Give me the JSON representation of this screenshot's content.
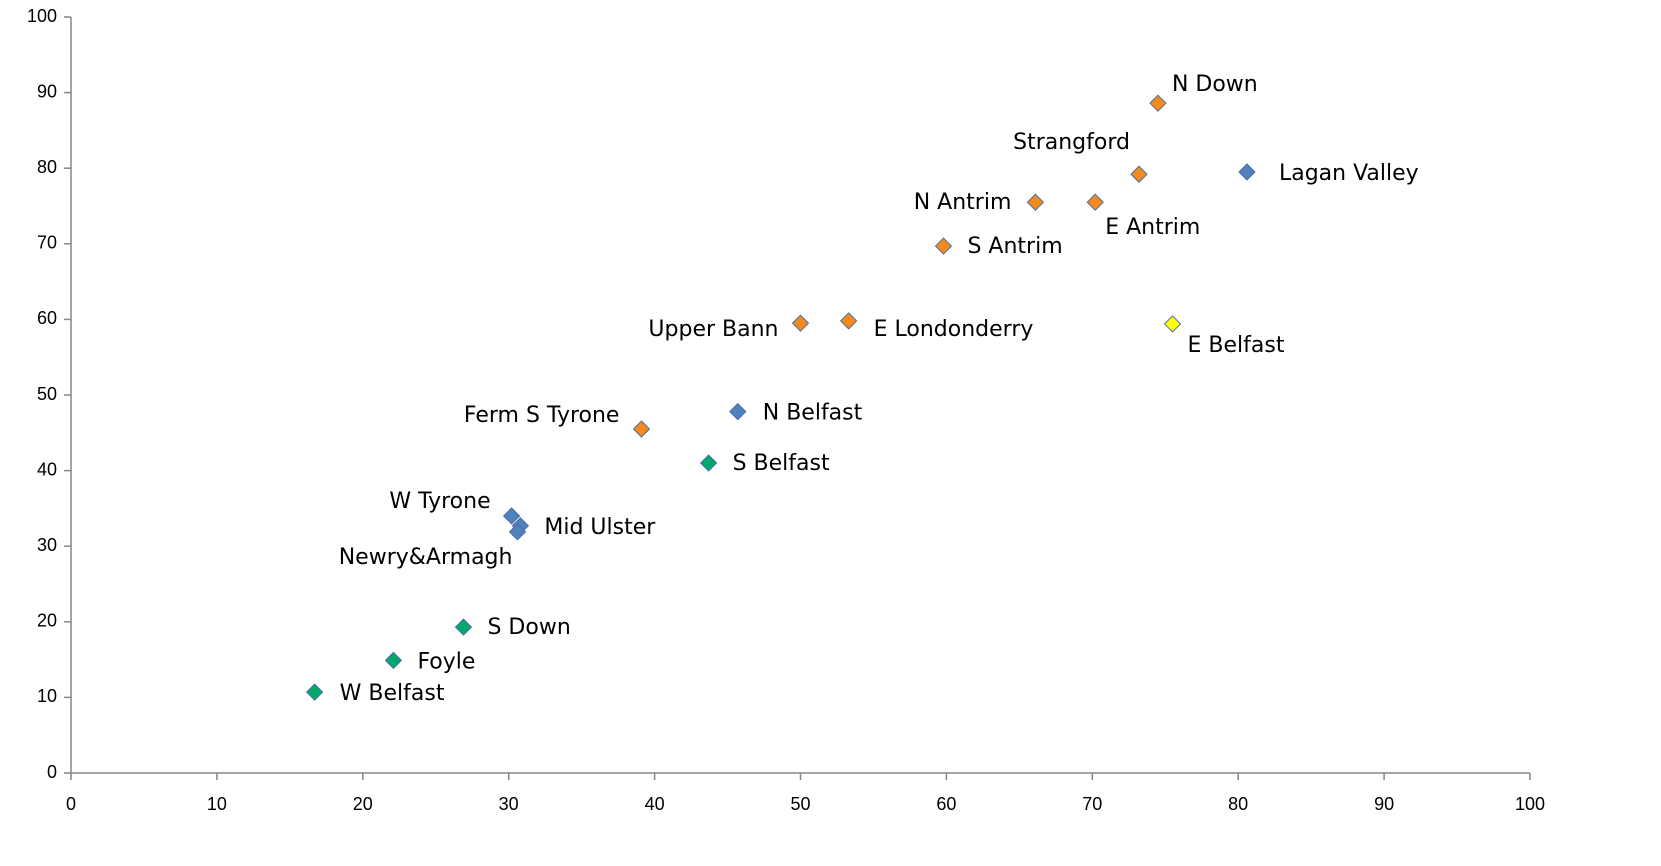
{
  "chart_data": {
    "type": "scatter",
    "labels": [
      "N Down",
      "Strangford",
      "Lagan Valley",
      "N Antrim",
      "E Antrim",
      "S Antrim",
      "Upper Bann",
      "E Londonderry",
      "E Belfast",
      "N Belfast",
      "Ferm S Tyrone",
      "S Belfast",
      "W Tyrone",
      "Mid Ulster",
      "Newry&Armagh",
      "S Down",
      "Foyle",
      "W Belfast"
    ],
    "x": [
      74.5,
      73.2,
      80.6,
      66.1,
      70.2,
      59.8,
      50.0,
      53.3,
      75.5,
      45.7,
      39.1,
      43.7,
      30.2,
      30.8,
      30.6,
      26.9,
      22.1,
      16.7
    ],
    "y": [
      88.6,
      79.2,
      79.5,
      75.5,
      75.5,
      69.7,
      59.5,
      59.8,
      59.4,
      47.8,
      45.5,
      41.0,
      34.0,
      32.7,
      31.9,
      19.3,
      14.9,
      10.7
    ],
    "colors": [
      "#f28a1e",
      "#f28a1e",
      "#4f81bd",
      "#f28a1e",
      "#f28a1e",
      "#f28a1e",
      "#f28a1e",
      "#f28a1e",
      "#ffff00",
      "#4f81bd",
      "#f28a1e",
      "#00a86b",
      "#4f81bd",
      "#4f81bd",
      "#4f81bd",
      "#00a86b",
      "#00a86b",
      "#00a86b"
    ],
    "xlim": [
      0,
      100
    ],
    "xticks": [
      0,
      10,
      20,
      30,
      40,
      50,
      60,
      70,
      80,
      90,
      100
    ],
    "ylim": [
      0,
      100
    ],
    "yticks": [
      0,
      10,
      20,
      30,
      40,
      50,
      60,
      70,
      80,
      90,
      100
    ]
  }
}
